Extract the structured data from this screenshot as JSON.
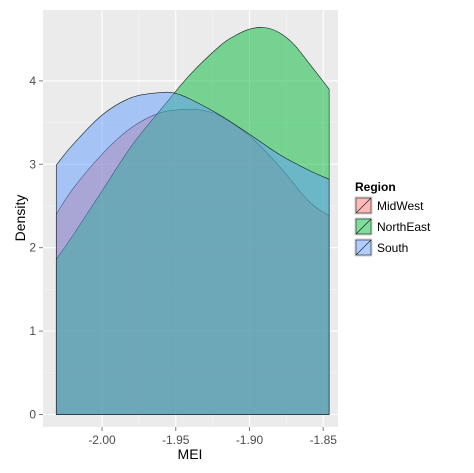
{
  "chart_data": {
    "type": "area",
    "xlabel": "MEI",
    "ylabel": "Density",
    "xlim": [
      -2.04,
      -1.84
    ],
    "ylim": [
      -0.15,
      4.85
    ],
    "x_ticks": [
      -2.0,
      -1.95,
      -1.9,
      -1.85
    ],
    "x_tick_labels": [
      "-2.00",
      "-1.95",
      "-1.90",
      "-1.85"
    ],
    "y_ticks": [
      0,
      1,
      2,
      3,
      4
    ],
    "y_tick_labels": [
      "0",
      "1",
      "2",
      "3",
      "4"
    ],
    "grid": true,
    "legend": {
      "title": "Region",
      "placement": "right",
      "items": [
        "MidWest",
        "NorthEast",
        "South"
      ]
    },
    "colors": {
      "MidWest": "#F8766D",
      "NorthEast": "#00BA38",
      "South": "#619CFF",
      "panel": "#EBEBEB",
      "grid_major": "#FFFFFF",
      "grid_minor": "#F5F5F5"
    },
    "series": [
      {
        "name": "MidWest",
        "x": [
          -2.031,
          -2.02,
          -2.0,
          -1.98,
          -1.96,
          -1.94,
          -1.93,
          -1.92,
          -1.9,
          -1.88,
          -1.86,
          -1.846
        ],
        "y": [
          2.4,
          2.7,
          3.12,
          3.44,
          3.62,
          3.66,
          3.64,
          3.58,
          3.34,
          2.98,
          2.56,
          2.38
        ]
      },
      {
        "name": "NorthEast",
        "x": [
          -2.031,
          -2.02,
          -2.0,
          -1.98,
          -1.96,
          -1.94,
          -1.92,
          -1.91,
          -1.9,
          -1.89,
          -1.88,
          -1.87,
          -1.86,
          -1.846
        ],
        "y": [
          1.86,
          2.14,
          2.68,
          3.22,
          3.66,
          4.08,
          4.42,
          4.54,
          4.62,
          4.64,
          4.58,
          4.44,
          4.22,
          3.9
        ]
      },
      {
        "name": "South",
        "x": [
          -2.031,
          -2.02,
          -2.0,
          -1.98,
          -1.96,
          -1.95,
          -1.94,
          -1.92,
          -1.9,
          -1.88,
          -1.86,
          -1.846
        ],
        "y": [
          2.99,
          3.23,
          3.59,
          3.8,
          3.86,
          3.85,
          3.78,
          3.59,
          3.36,
          3.12,
          2.93,
          2.82
        ]
      }
    ]
  }
}
